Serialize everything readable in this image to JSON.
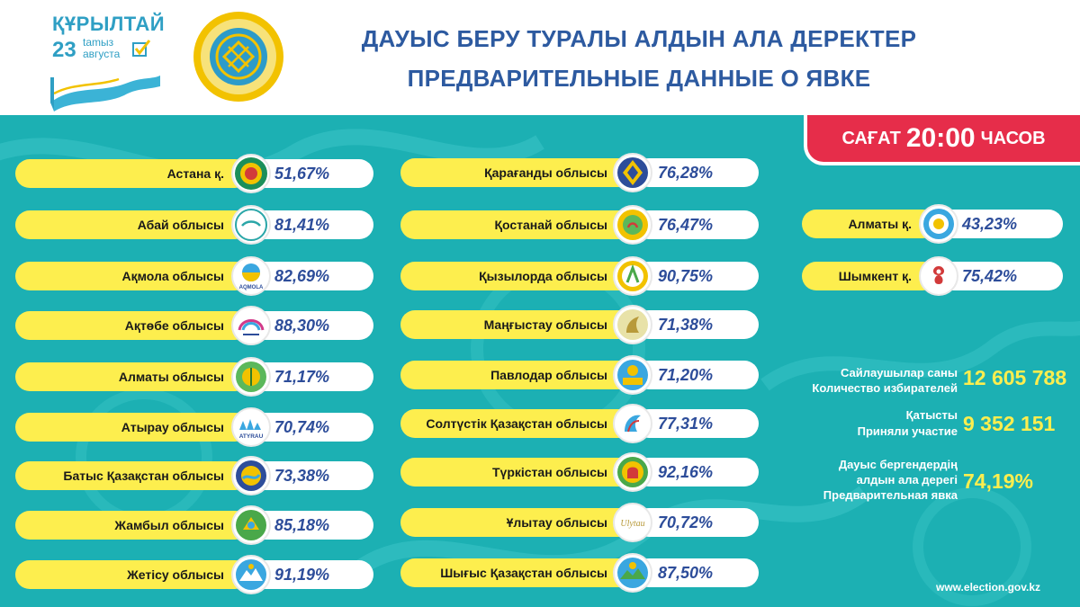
{
  "header": {
    "brand_title": "ҚҰРЫЛТАЙ",
    "brand_day": "23",
    "brand_month_kz": "tamыз",
    "brand_month_ru": "августа",
    "title_kz": "ДАУЫС БЕРУ ТУРАЛЫ АЛДЫН АЛА ДЕРЕКТЕР",
    "title_ru": "ПРЕДВАРИТЕЛЬНЫЕ ДАННЫЕ О ЯВКЕ"
  },
  "time_badge": {
    "prefix": "САҒАТ",
    "time": "20:00",
    "suffix": "ЧАСОВ"
  },
  "column1": [
    {
      "name": "Астана қ.",
      "turnout": "51,67%",
      "emblem": "astana-emblem-icon"
    },
    {
      "name": "Абай облысы",
      "turnout": "81,41%",
      "emblem": "abai-emblem-icon"
    },
    {
      "name": "Ақмола облысы",
      "turnout": "82,69%",
      "emblem": "akmola-emblem-icon",
      "emblem_text": "AQMOLA"
    },
    {
      "name": "Ақтөбе облысы",
      "turnout": "88,30%",
      "emblem": "aktobe-emblem-icon"
    },
    {
      "name": "Алматы облысы",
      "turnout": "71,17%",
      "emblem": "almaty-region-emblem-icon"
    },
    {
      "name": "Атырау облысы",
      "turnout": "70,74%",
      "emblem": "atyrau-emblem-icon",
      "emblem_text": "ATYRAU"
    },
    {
      "name": "Батыс Қазақстан облысы",
      "turnout": "73,38%",
      "emblem": "west-kazakhstan-emblem-icon"
    },
    {
      "name": "Жамбыл облысы",
      "turnout": "85,18%",
      "emblem": "zhambyl-emblem-icon"
    },
    {
      "name": "Жетісу облысы",
      "turnout": "91,19%",
      "emblem": "zhetisu-emblem-icon"
    }
  ],
  "column2": [
    {
      "name": "Қарағанды облысы",
      "turnout": "76,28%",
      "emblem": "karaganda-emblem-icon"
    },
    {
      "name": "Қостанай облысы",
      "turnout": "76,47%",
      "emblem": "kostanay-emblem-icon"
    },
    {
      "name": "Қызылорда облысы",
      "turnout": "90,75%",
      "emblem": "kyzylorda-emblem-icon"
    },
    {
      "name": "Маңғыстау облысы",
      "turnout": "71,38%",
      "emblem": "mangystau-emblem-icon"
    },
    {
      "name": "Павлодар облысы",
      "turnout": "71,20%",
      "emblem": "pavlodar-emblem-icon"
    },
    {
      "name": "Солтүстік Қазақстан облысы",
      "turnout": "77,31%",
      "emblem": "north-kazakhstan-emblem-icon"
    },
    {
      "name": "Түркістан облысы",
      "turnout": "92,16%",
      "emblem": "turkistan-emblem-icon"
    },
    {
      "name": "Ұлытау облысы",
      "turnout": "70,72%",
      "emblem": "ulytau-emblem-icon",
      "emblem_text": "Ulytau"
    },
    {
      "name": "Шығыс Қазақстан облысы",
      "turnout": "87,50%",
      "emblem": "east-kazakhstan-emblem-icon"
    }
  ],
  "column3": [
    {
      "name": "Алматы қ.",
      "turnout": "43,23%",
      "emblem": "almaty-city-emblem-icon"
    },
    {
      "name": "Шымкент қ.",
      "turnout": "75,42%",
      "emblem": "shymkent-emblem-icon"
    }
  ],
  "stats": {
    "voters_label_kz": "Сайлаушылар саны",
    "voters_label_ru": "Количество избирателей",
    "voters_value": "12 605 788",
    "participated_label_kz": "Қатысты",
    "participated_label_ru": "Приняли участие",
    "participated_value": "9 352 151",
    "prelim_label_kz_1": "Дауыс бергендердің",
    "prelim_label_kz_2": "алдын ала дерегі",
    "prelim_label_ru": "Предварительная явка",
    "prelim_value": "74,19%"
  },
  "footer": {
    "website": "www.election.gov.kz"
  },
  "colors": {
    "teal": "#1cb0b3",
    "yellow": "#fdee4e",
    "red": "#e62d4a",
    "navy": "#2d5aa0"
  }
}
